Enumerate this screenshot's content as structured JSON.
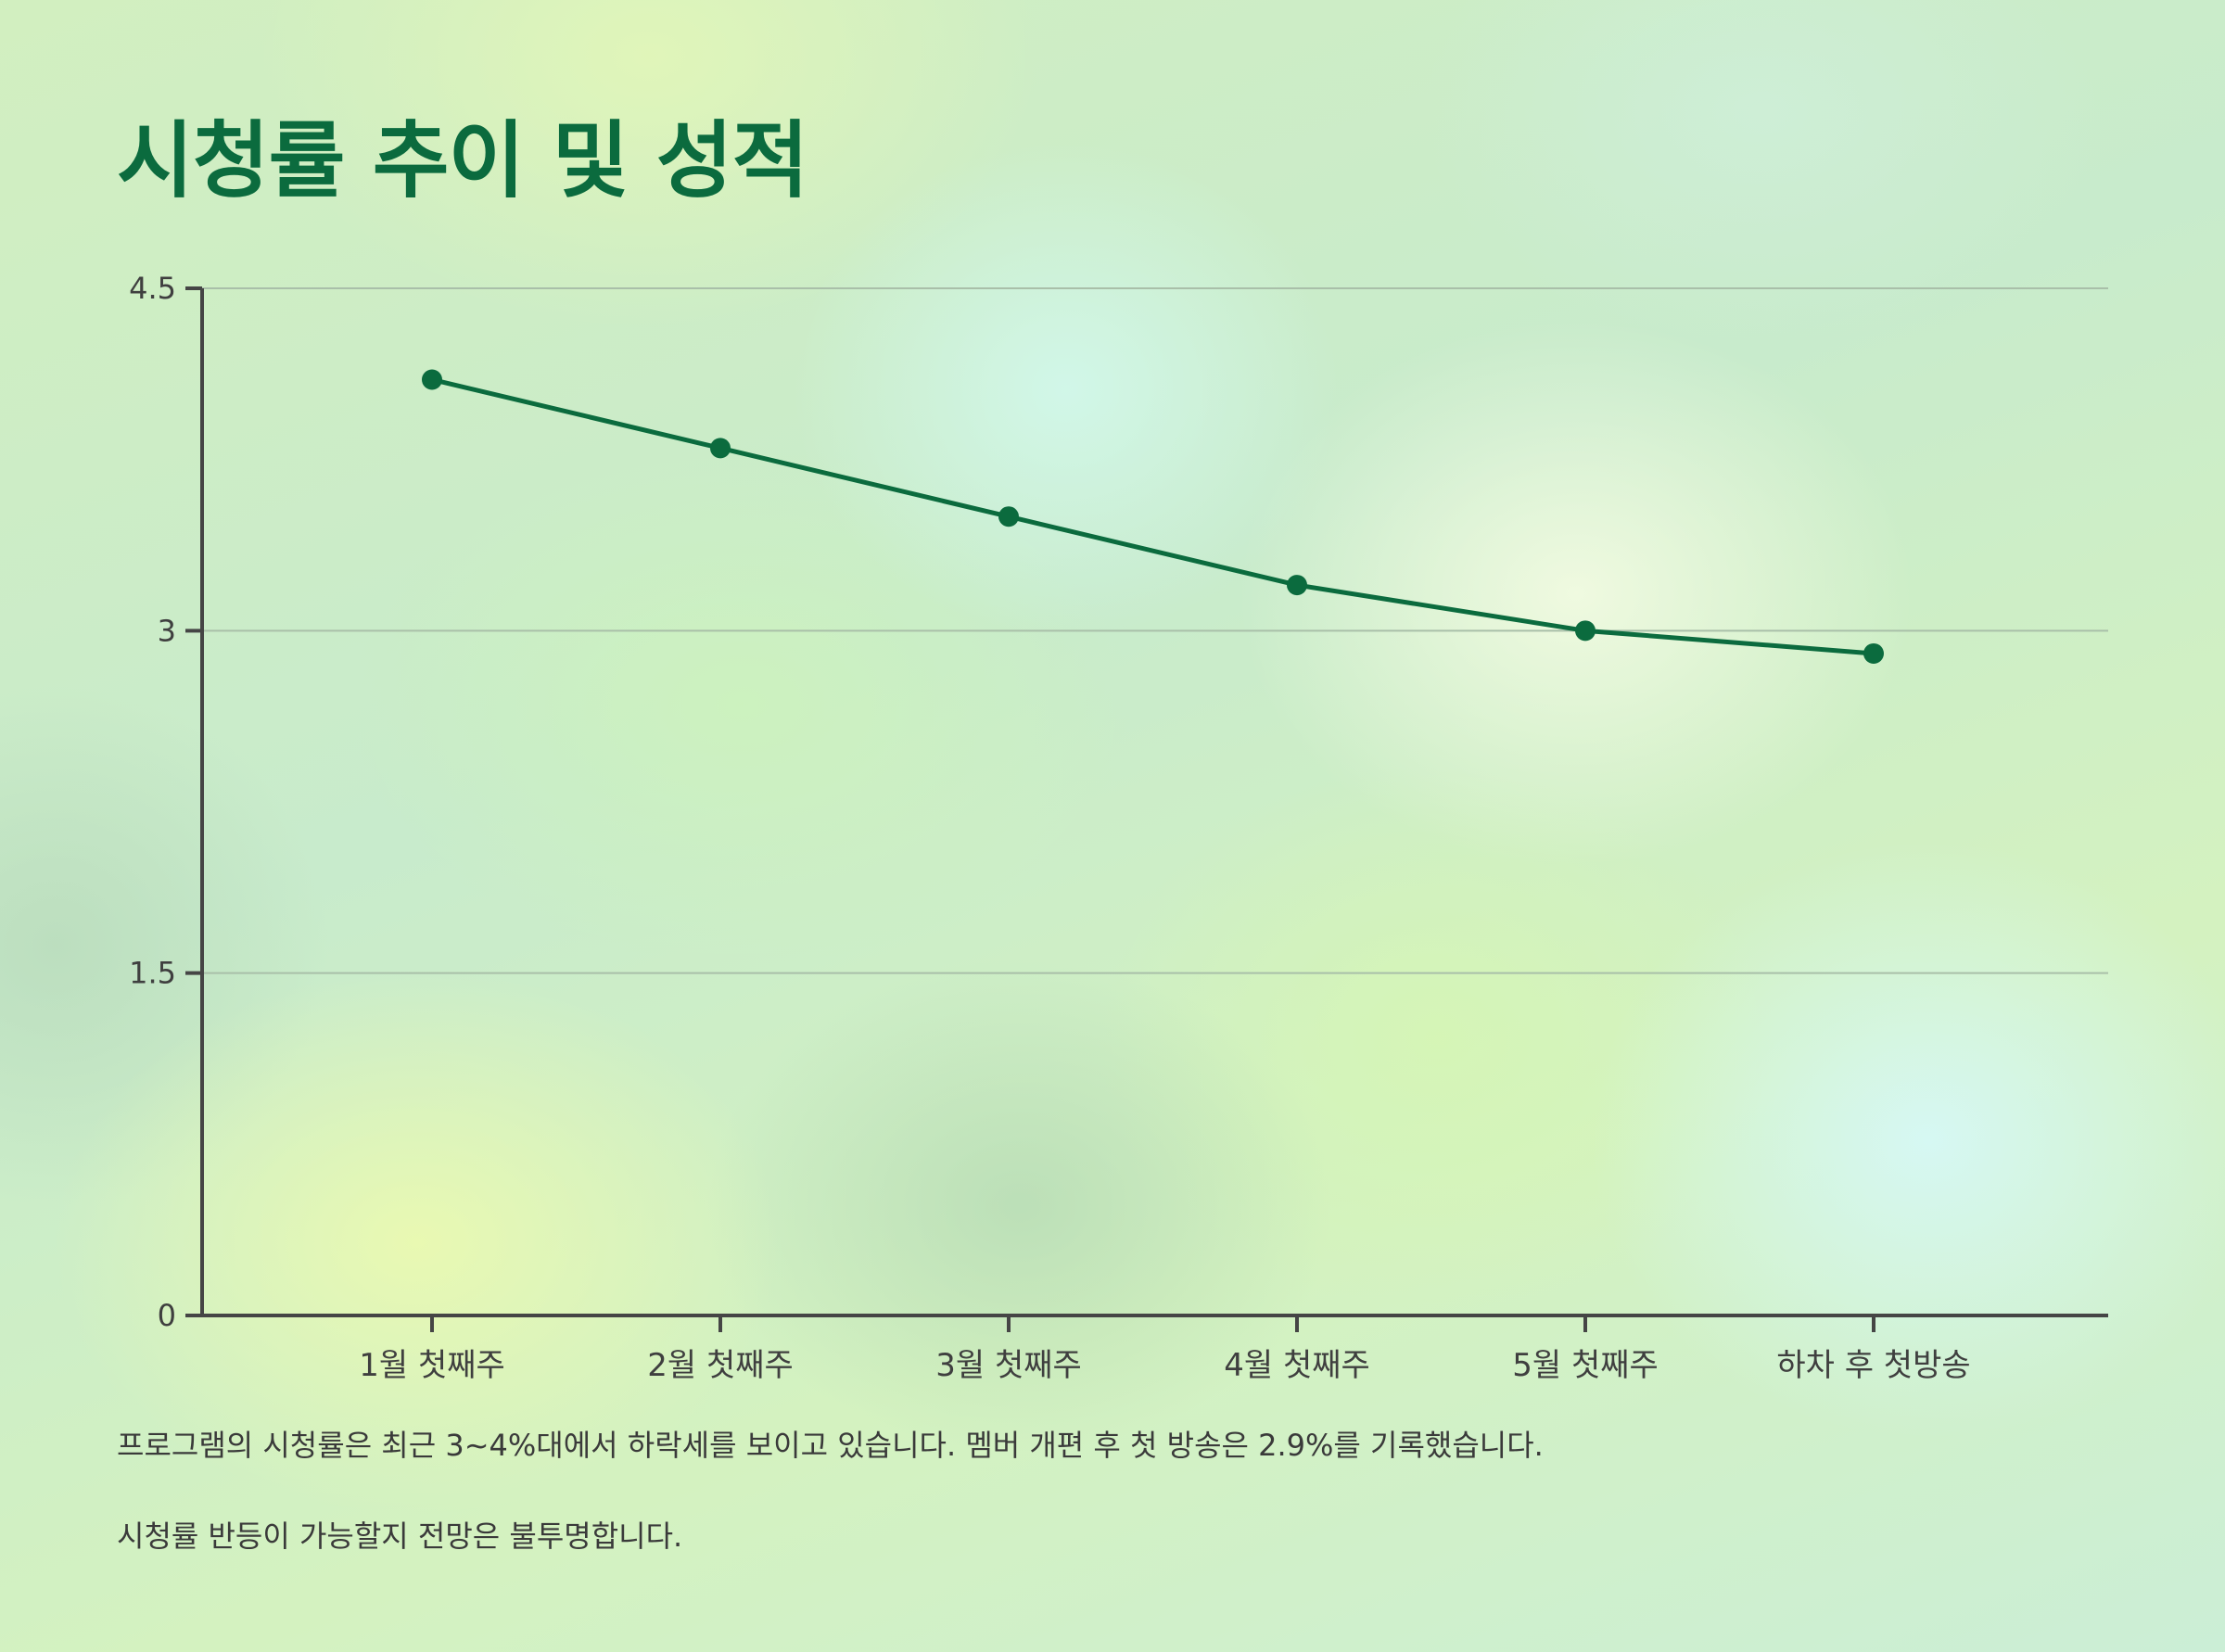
{
  "chart_data": {
    "type": "line",
    "title": "시청률 추이 및 성적",
    "categories": [
      "1월 첫째주",
      "2월 첫째주",
      "3월 첫째주",
      "4월 첫째주",
      "5월 첫째주",
      "하차 후 첫방송"
    ],
    "series": [
      {
        "values": [
          4.1,
          3.8,
          3.5,
          3.2,
          3.0,
          2.9
        ]
      }
    ],
    "ylim": [
      0,
      4.5
    ],
    "yticks": [
      0,
      1.5,
      3,
      4.5
    ],
    "yticklabels": [
      "0",
      "1.5",
      "3",
      "4.5"
    ],
    "grid": true,
    "xlabel": "",
    "ylabel": "",
    "line_color": "#0b6b3e"
  },
  "notes": [
    "프로그램의 시청률은 최근 3~4%대에서 하락세를 보이고 있습니다. 멤버 개편 후 첫 방송은 2.9%를 기록했습니다.",
    "시청률 반등이 가능할지 전망은 불투명합니다."
  ]
}
